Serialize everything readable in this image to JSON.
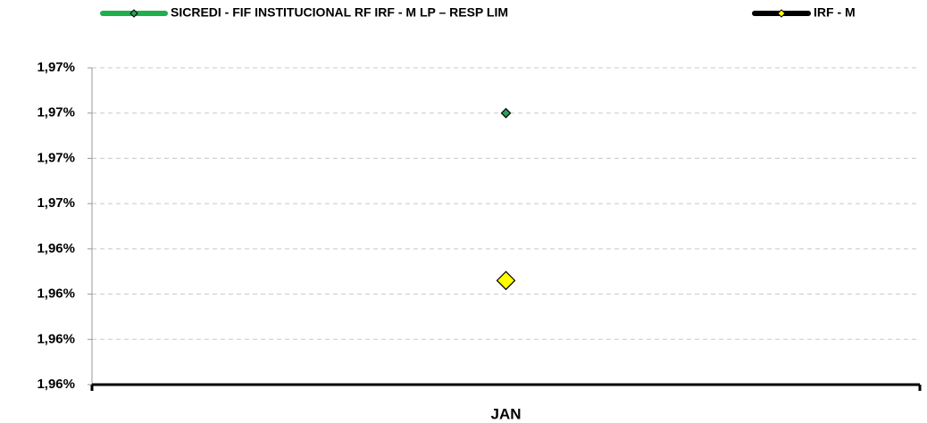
{
  "chart_data": {
    "type": "line",
    "categories": [
      "JAN"
    ],
    "series": [
      {
        "name": "SICREDI - FIF INSTITUCIONAL RF IRF - M LP – RESP LIM",
        "color": "#1fb04e",
        "marker_color": "#2e9e5a",
        "values": [
          1.97
        ]
      },
      {
        "name": "IRF - M",
        "color": "#000000",
        "marker_color": "#ffff00",
        "values": [
          1.9626
        ]
      }
    ],
    "ylim": [
      1.958,
      1.972
    ],
    "yticks": [
      {
        "value": 1.958,
        "label": "1,96%"
      },
      {
        "value": 1.96,
        "label": "1,96%"
      },
      {
        "value": 1.962,
        "label": "1,96%"
      },
      {
        "value": 1.964,
        "label": "1,96%"
      },
      {
        "value": 1.966,
        "label": "1,97%"
      },
      {
        "value": 1.968,
        "label": "1,97%"
      },
      {
        "value": 1.97,
        "label": "1,97%"
      },
      {
        "value": 1.972,
        "label": "1,97%"
      }
    ],
    "grid": true,
    "legend": "top"
  }
}
